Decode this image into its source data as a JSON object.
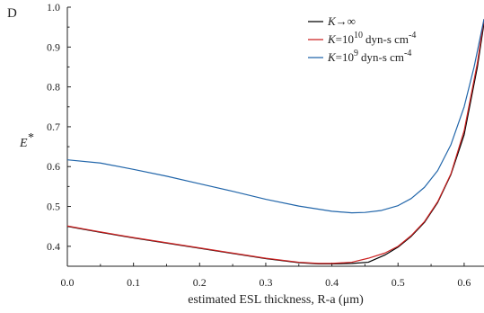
{
  "chart_data": {
    "type": "line",
    "panel_label": "D",
    "xlabel": "estimated ESL thickness, R-a (μm)",
    "ylabel": "E*",
    "xlim": [
      0,
      0.63
    ],
    "ylim": [
      0.35,
      1.0
    ],
    "x_ticks": [
      0.0,
      0.1,
      0.2,
      0.3,
      0.4,
      0.5,
      0.6
    ],
    "x_tick_labels": [
      "0.0",
      "0.1",
      "0.2",
      "0.3",
      "0.4",
      "0.5",
      "0.6"
    ],
    "y_ticks": [
      0.4,
      0.5,
      0.6,
      0.7,
      0.8,
      0.9,
      1.0
    ],
    "y_tick_labels": [
      "0.4",
      "0.5",
      "0.6",
      "0.7",
      "0.8",
      "0.9",
      "1.0"
    ],
    "grid": false,
    "legend_placement": "top-right",
    "series": [
      {
        "name": "K→∞",
        "legend_main": "K→∞",
        "legend_sup": "",
        "legend_unit": "",
        "legend_unit_sup": "",
        "color": "#000000",
        "points": [
          [
            0.0,
            0.45
          ],
          [
            0.05,
            0.435
          ],
          [
            0.1,
            0.421
          ],
          [
            0.15,
            0.408
          ],
          [
            0.2,
            0.395
          ],
          [
            0.25,
            0.382
          ],
          [
            0.3,
            0.369
          ],
          [
            0.35,
            0.359
          ],
          [
            0.38,
            0.356
          ],
          [
            0.4,
            0.356
          ],
          [
            0.43,
            0.357
          ],
          [
            0.455,
            0.36
          ],
          [
            0.48,
            0.378
          ],
          [
            0.5,
            0.398
          ],
          [
            0.52,
            0.425
          ],
          [
            0.54,
            0.46
          ],
          [
            0.56,
            0.51
          ],
          [
            0.58,
            0.58
          ],
          [
            0.6,
            0.68
          ],
          [
            0.62,
            0.85
          ],
          [
            0.63,
            0.96
          ]
        ]
      },
      {
        "name": "K=10¹⁰ dyn-s cm⁻⁴",
        "legend_main": "K=10",
        "legend_sup": "10",
        "legend_unit": "dyn-s cm",
        "legend_unit_sup": "-4",
        "color": "#cc2222",
        "points": [
          [
            0.0,
            0.451
          ],
          [
            0.05,
            0.436
          ],
          [
            0.1,
            0.422
          ],
          [
            0.15,
            0.409
          ],
          [
            0.2,
            0.396
          ],
          [
            0.25,
            0.383
          ],
          [
            0.3,
            0.37
          ],
          [
            0.35,
            0.36
          ],
          [
            0.38,
            0.357
          ],
          [
            0.4,
            0.357
          ],
          [
            0.43,
            0.36
          ],
          [
            0.455,
            0.37
          ],
          [
            0.48,
            0.383
          ],
          [
            0.5,
            0.4
          ],
          [
            0.52,
            0.427
          ],
          [
            0.54,
            0.462
          ],
          [
            0.56,
            0.512
          ],
          [
            0.58,
            0.582
          ],
          [
            0.6,
            0.69
          ],
          [
            0.62,
            0.86
          ],
          [
            0.63,
            0.97
          ]
        ]
      },
      {
        "name": "K=10⁹ dyn-s cm⁻⁴",
        "legend_main": "K=10",
        "legend_sup": "9",
        "legend_unit": "dyn-s cm",
        "legend_unit_sup": "-4",
        "color": "#2266aa",
        "points": [
          [
            0.0,
            0.617
          ],
          [
            0.05,
            0.609
          ],
          [
            0.1,
            0.593
          ],
          [
            0.15,
            0.576
          ],
          [
            0.2,
            0.557
          ],
          [
            0.25,
            0.538
          ],
          [
            0.3,
            0.518
          ],
          [
            0.35,
            0.501
          ],
          [
            0.4,
            0.488
          ],
          [
            0.43,
            0.484
          ],
          [
            0.45,
            0.485
          ],
          [
            0.475,
            0.49
          ],
          [
            0.5,
            0.502
          ],
          [
            0.52,
            0.52
          ],
          [
            0.54,
            0.548
          ],
          [
            0.56,
            0.59
          ],
          [
            0.58,
            0.655
          ],
          [
            0.6,
            0.75
          ],
          [
            0.615,
            0.85
          ],
          [
            0.63,
            0.97
          ]
        ]
      }
    ]
  }
}
